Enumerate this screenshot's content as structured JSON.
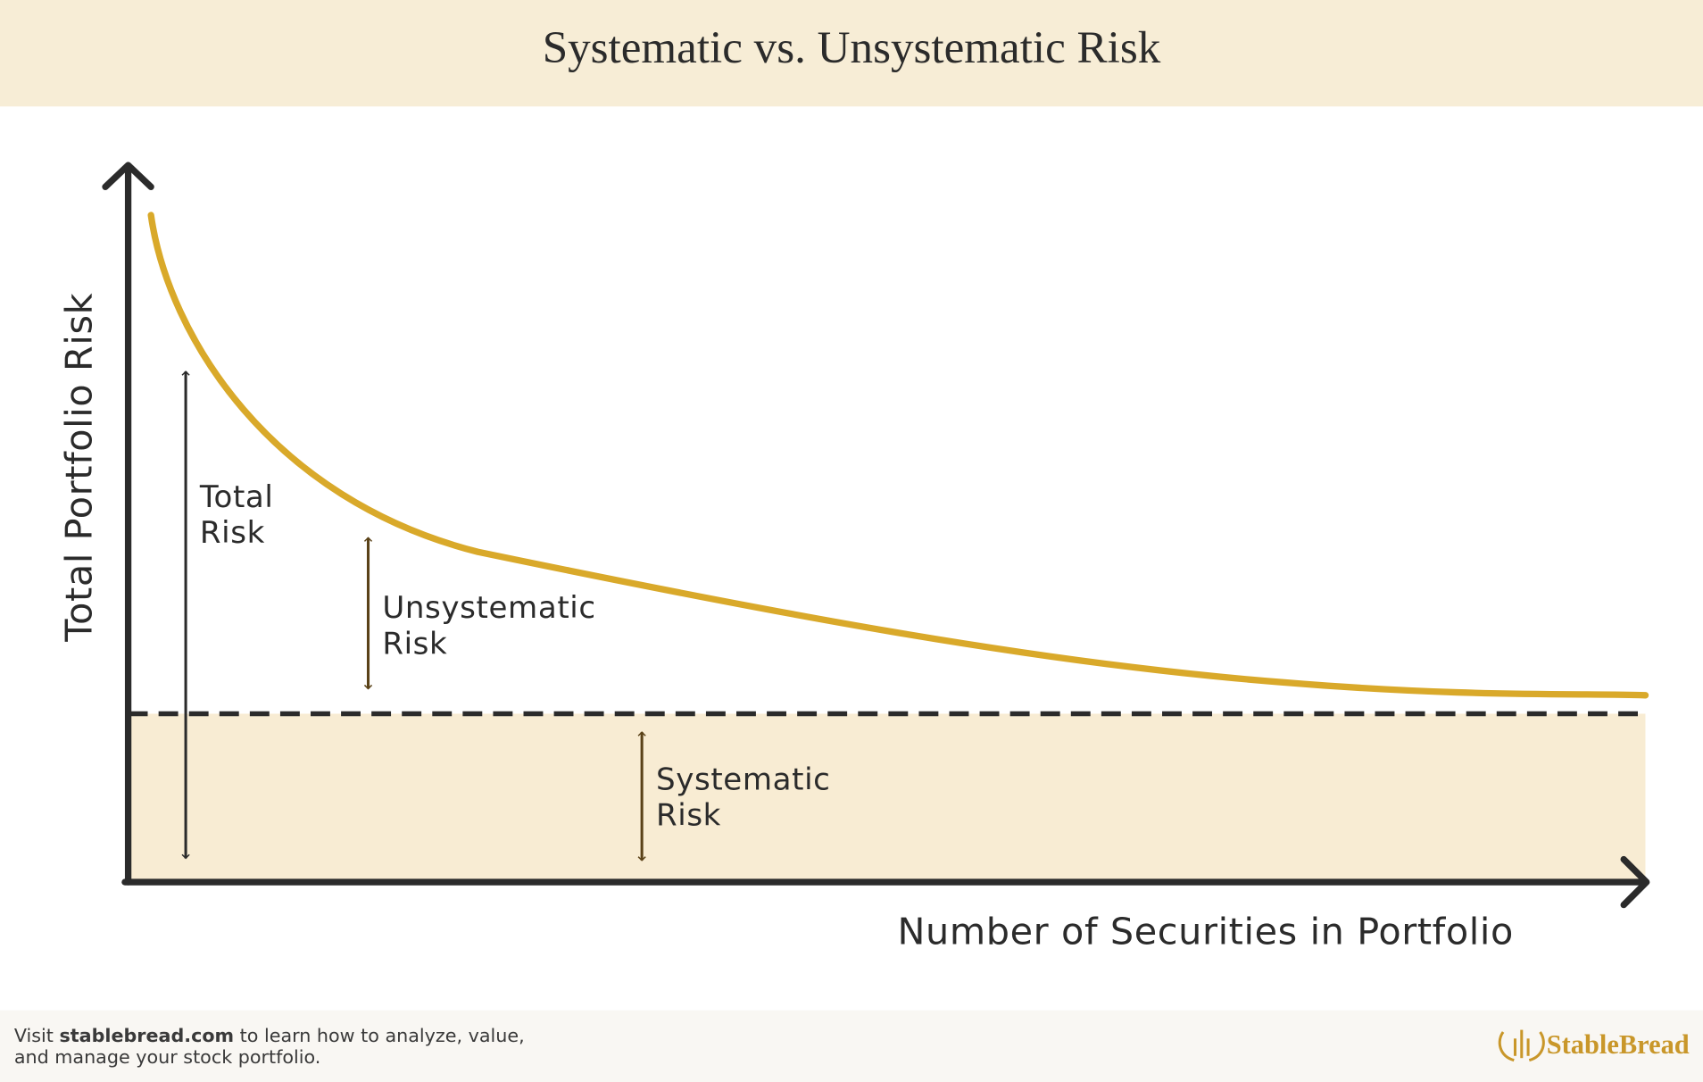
{
  "header": {
    "title": "Systematic vs. Unsystematic Risk"
  },
  "axes": {
    "y_label": "Total Portfolio Risk",
    "x_label": "Number of Securities in Portfolio"
  },
  "annotations": [
    {
      "lines": [
        "Total",
        "Risk"
      ]
    },
    {
      "lines": [
        "Unsystematic",
        "Risk"
      ]
    },
    {
      "lines": [
        "Systematic",
        "Risk"
      ]
    }
  ],
  "footer": {
    "line1": {
      "before": "Visit ",
      "link": "stablebread.com",
      "after": " to learn how to analyze, value,"
    },
    "line2": "and manage your stock portfolio.",
    "brand": "StableBread"
  }
}
